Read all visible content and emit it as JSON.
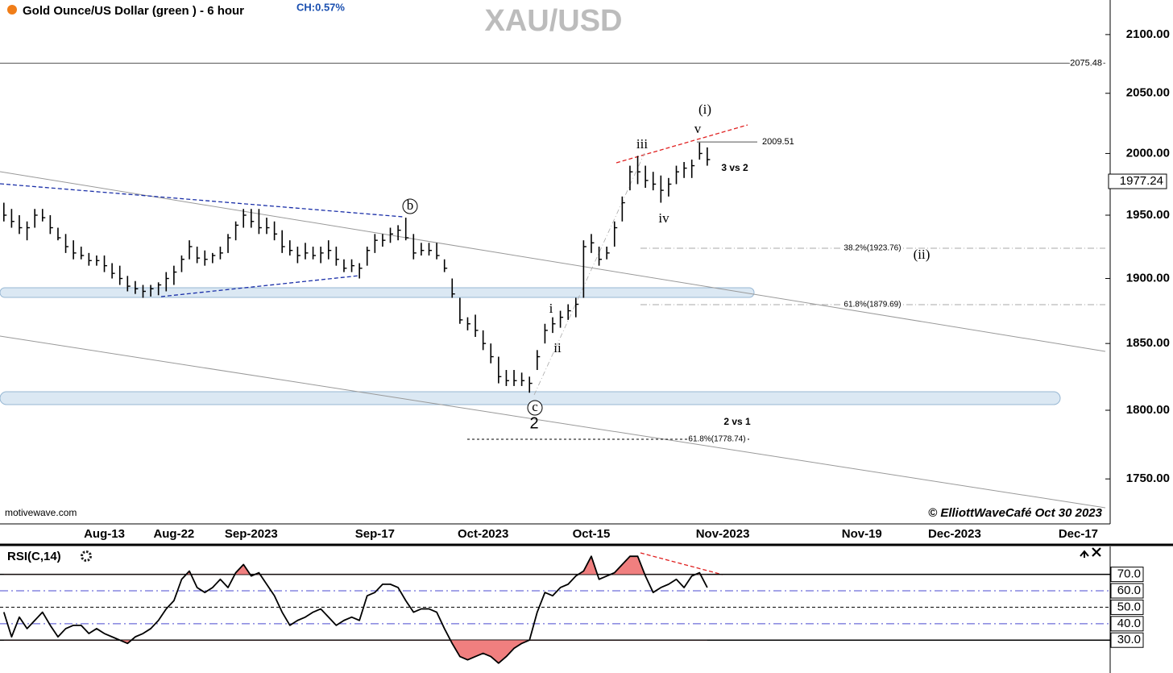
{
  "chart_data": {
    "type": "ohlc",
    "title": "Gold Ounce/US Dollar (green ) - 6 hour",
    "change": "CH:0.57%",
    "watermark": "XAU/USD",
    "log_scale": true,
    "color": "#000000",
    "ylim": [
      1718,
      2130
    ],
    "yticks": [
      {
        "value": 1750,
        "label": "1750.00"
      },
      {
        "value": 1800,
        "label": "1800.00"
      },
      {
        "value": 1850,
        "label": "1850.00"
      },
      {
        "value": 1900,
        "label": "1900.00"
      },
      {
        "value": 1950,
        "label": "1950.00"
      },
      {
        "value": 2000,
        "label": "2000.00"
      },
      {
        "value": 2050,
        "label": "2050.00"
      },
      {
        "value": 2100,
        "label": "2100.00"
      }
    ],
    "last_price": 1977.24,
    "hlines": [
      2075.48,
      2009.51
    ],
    "fib_levels": [
      {
        "value": 1923.76,
        "label": "38.2%(1923.76)"
      },
      {
        "value": 1879.69,
        "label": "61.8%(1879.69)"
      },
      {
        "value": 1778.74,
        "label": "61.8%(1778.74)"
      }
    ],
    "annotations": [
      "(i)",
      "v",
      "iii",
      "3 vs 2",
      "iv",
      "(ii)",
      "i",
      "ii",
      "b",
      "c",
      "2",
      "2 vs 1",
      "motivewave.com",
      "© ElliottWaveCafé Oct 30 2023"
    ],
    "categories": [
      null,
      null,
      null,
      null,
      null,
      null,
      null,
      null,
      null,
      null,
      null,
      null,
      null,
      "Aug-13",
      null,
      null,
      null,
      null,
      null,
      null,
      null,
      null,
      "Aug-22",
      null,
      null,
      null,
      null,
      null,
      null,
      null,
      null,
      null,
      "Sep-2023",
      null,
      null,
      null,
      null,
      null,
      null,
      null,
      null,
      null,
      null,
      null,
      null,
      null,
      null,
      null,
      "Sep-17",
      null,
      null,
      null,
      null,
      null,
      null,
      null,
      null,
      null,
      null,
      null,
      null,
      null,
      "Oct-2023",
      null,
      null,
      null,
      null,
      null,
      null,
      null,
      null,
      null,
      null,
      null,
      null,
      null,
      "Oct-15",
      null,
      null,
      null,
      null,
      null,
      null,
      null,
      null,
      null,
      null,
      null,
      null,
      null,
      null,
      null,
      null,
      "Nov-2023",
      null,
      null,
      null,
      null,
      null,
      null,
      null,
      null,
      null,
      null,
      null,
      null,
      null,
      null,
      null,
      null,
      null,
      "Nov-19",
      null,
      null,
      null,
      null,
      null,
      null,
      null,
      null,
      null,
      null,
      null,
      "Dec-2023",
      null,
      null,
      null,
      null,
      null,
      null,
      null,
      null,
      null,
      null,
      null,
      null,
      null,
      null,
      null,
      "Dec-17",
      null,
      null,
      null
    ],
    "high": [
      1960,
      1955,
      1950,
      1945,
      1955,
      1955,
      1950,
      1940,
      1935,
      1930,
      1925,
      1920,
      1918,
      1918,
      1912,
      1910,
      1902,
      1898,
      1895,
      1895,
      1897,
      1905,
      1910,
      1918,
      1930,
      1925,
      1922,
      1920,
      1925,
      1935,
      1945,
      1955,
      1955,
      1955,
      1948,
      1945,
      1938,
      1930,
      1925,
      1928,
      1925,
      1925,
      1930,
      1925,
      1915,
      1915,
      1912,
      1925,
      1935,
      1935,
      1940,
      1942,
      1948,
      1935,
      1928,
      1928,
      1928,
      1915,
      1900,
      1885,
      1870,
      1872,
      1860,
      1850,
      1840,
      1830,
      1830,
      1828,
      1825,
      1845,
      1865,
      1870,
      1875,
      1880,
      1885,
      1930,
      1935,
      1925,
      1925,
      1945,
      1965,
      1990,
      1998,
      1990,
      1985,
      1982,
      1980,
      1990,
      1993,
      1995,
      2009,
      2005,
      null,
      null,
      null,
      null,
      null,
      null,
      null,
      null,
      null,
      null,
      null,
      null,
      null,
      null,
      null,
      null,
      null,
      null,
      null,
      null,
      null,
      null,
      null,
      null,
      null,
      null,
      null,
      null,
      null,
      null,
      null,
      null,
      null,
      null,
      null,
      null,
      null,
      null,
      null,
      null,
      null,
      null,
      null,
      null,
      null,
      null,
      null,
      null,
      null,
      null,
      null
    ],
    "low": [
      1945,
      1940,
      1935,
      1930,
      1940,
      1945,
      1935,
      1930,
      1920,
      1915,
      1915,
      1910,
      1910,
      1905,
      1900,
      1895,
      1890,
      1888,
      1885,
      1886,
      1887,
      1890,
      1895,
      1905,
      1915,
      1912,
      1910,
      1912,
      1915,
      1920,
      1930,
      1940,
      1940,
      1935,
      1935,
      1930,
      1920,
      1918,
      1912,
      1915,
      1915,
      1912,
      1915,
      1910,
      1905,
      1905,
      1900,
      1910,
      1920,
      1925,
      1928,
      1930,
      1930,
      1915,
      1918,
      1918,
      1915,
      1905,
      1885,
      1865,
      1860,
      1855,
      1845,
      1835,
      1820,
      1818,
      1818,
      1818,
      1813,
      1830,
      1850,
      1858,
      1862,
      1868,
      1870,
      1885,
      1920,
      1910,
      1915,
      1925,
      1945,
      1970,
      1975,
      1972,
      1970,
      1960,
      1965,
      1975,
      1980,
      1980,
      1995,
      1990,
      null,
      null,
      null,
      null,
      null,
      null,
      null,
      null,
      null,
      null,
      null,
      null,
      null,
      null,
      null,
      null,
      null,
      null,
      null,
      null,
      null,
      null,
      null,
      null,
      null,
      null,
      null,
      null,
      null,
      null,
      null,
      null,
      null,
      null,
      null,
      null,
      null,
      null,
      null,
      null,
      null,
      null,
      null,
      null,
      null,
      null,
      null,
      null,
      null,
      null,
      null
    ],
    "close": [
      1950,
      1945,
      1940,
      1940,
      1950,
      1948,
      1940,
      1932,
      1925,
      1920,
      1918,
      1914,
      1914,
      1910,
      1904,
      1900,
      1894,
      1892,
      1890,
      1892,
      1895,
      1900,
      1905,
      1915,
      1925,
      1916,
      1915,
      1918,
      1920,
      1932,
      1942,
      1950,
      1945,
      1940,
      1940,
      1935,
      1925,
      1922,
      1918,
      1920,
      1918,
      1920,
      1922,
      1915,
      1908,
      1910,
      1908,
      1922,
      1930,
      1930,
      1935,
      1938,
      1932,
      1920,
      1922,
      1922,
      1918,
      1908,
      1888,
      1868,
      1865,
      1860,
      1850,
      1840,
      1825,
      1822,
      1822,
      1822,
      1820,
      1840,
      1860,
      1865,
      1870,
      1875,
      1880,
      1925,
      1928,
      1915,
      1920,
      1940,
      1960,
      1985,
      1985,
      1978,
      1975,
      1970,
      1975,
      1985,
      1988,
      1990,
      2000,
      1995,
      null,
      null,
      null,
      null,
      null,
      null,
      null,
      null,
      null,
      null,
      null,
      null,
      null,
      null,
      null,
      null,
      null,
      null,
      null,
      null,
      null,
      null,
      null,
      null,
      null,
      null,
      null,
      null,
      null,
      null,
      null,
      null,
      null,
      null,
      null,
      null,
      null,
      null,
      null,
      null,
      null,
      null,
      null,
      null,
      null,
      null,
      null,
      null,
      null,
      null,
      null
    ],
    "rsi": {
      "name": "RSI(C,14)",
      "color": "#000000",
      "fill_color": "#f07f7f",
      "ylim": [
        10,
        86
      ],
      "yticks": [
        {
          "value": 70,
          "label": "70.0"
        },
        {
          "value": 60,
          "label": "60.0"
        },
        {
          "value": 50,
          "label": "50.0"
        },
        {
          "value": 40,
          "label": "40.0"
        },
        {
          "value": 30,
          "label": "30.0"
        }
      ],
      "values": [
        47,
        32,
        44,
        37,
        42,
        47,
        39,
        32,
        37,
        39,
        39,
        34,
        37,
        34,
        32,
        30,
        28,
        32,
        34,
        37,
        42,
        49,
        54,
        67,
        72,
        62,
        59,
        62,
        67,
        62,
        71,
        76,
        69,
        71,
        64,
        57,
        47,
        39,
        42,
        44,
        47,
        49,
        44,
        39,
        42,
        44,
        42,
        57,
        59,
        64,
        64,
        62,
        54,
        47,
        49,
        49,
        47,
        37,
        28,
        20,
        18,
        20,
        22,
        20,
        16,
        20,
        25,
        28,
        30,
        47,
        59,
        57,
        62,
        64,
        69,
        72,
        81,
        67,
        69,
        71,
        76,
        81,
        81,
        69,
        59,
        62,
        64,
        67,
        62,
        69,
        71,
        62,
        null,
        null,
        null,
        null,
        null,
        null,
        null,
        null,
        null,
        null,
        null,
        null,
        null,
        null,
        null,
        null,
        null,
        null,
        null,
        null,
        null,
        null,
        null,
        null,
        null,
        null,
        null,
        null,
        null,
        null,
        null,
        null,
        null,
        null,
        null,
        null,
        null,
        null,
        null,
        null,
        null,
        null,
        null,
        null,
        null,
        null,
        null,
        null,
        null,
        null,
        null
      ]
    }
  }
}
